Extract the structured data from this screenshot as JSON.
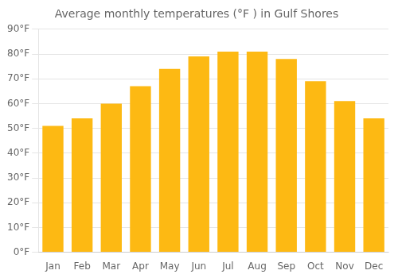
{
  "chart_data": {
    "type": "bar",
    "title": "Average monthly temperatures (°F ) in Gulf Shores",
    "categories": [
      "Jan",
      "Feb",
      "Mar",
      "Apr",
      "May",
      "Jun",
      "Jul",
      "Aug",
      "Sep",
      "Oct",
      "Nov",
      "Dec"
    ],
    "values": [
      51,
      54,
      60,
      67,
      74,
      79,
      81,
      81,
      78,
      69,
      61,
      54
    ],
    "color": "#FDB913",
    "ylim": [
      0,
      90
    ],
    "yticks": [
      {
        "value": 0,
        "label": "0°F"
      },
      {
        "value": 10,
        "label": "10°F"
      },
      {
        "value": 20,
        "label": "20°F"
      },
      {
        "value": 30,
        "label": "30°F"
      },
      {
        "value": 40,
        "label": "40°F"
      },
      {
        "value": 50,
        "label": "50°F"
      },
      {
        "value": 60,
        "label": "60°F"
      },
      {
        "value": 70,
        "label": "70°F"
      },
      {
        "value": 80,
        "label": "80°F"
      },
      {
        "value": 90,
        "label": "90°F"
      }
    ],
    "grid": true
  }
}
